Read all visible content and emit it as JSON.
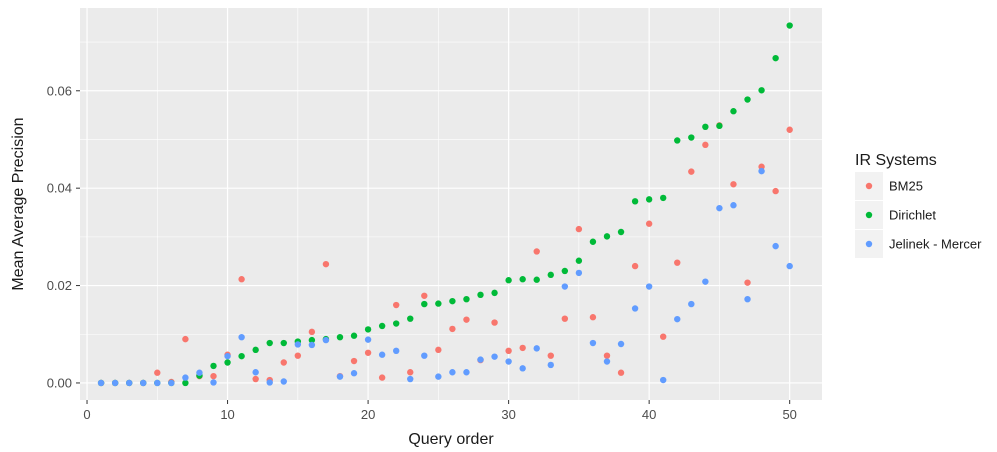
{
  "chart_data": {
    "type": "scatter",
    "title": "",
    "xlabel": "Query order",
    "ylabel": "Mean Average Precision",
    "xlim": [
      -0.5,
      52.3
    ],
    "ylim": [
      -0.0035,
      0.077
    ],
    "x_ticks": [
      0,
      10,
      20,
      30,
      40,
      50
    ],
    "x_tick_labels": [
      "0",
      "10",
      "20",
      "30",
      "40",
      "50"
    ],
    "y_ticks": [
      0.0,
      0.02,
      0.04,
      0.06
    ],
    "y_tick_labels": [
      "0.00",
      "0.02",
      "0.04",
      "0.06"
    ],
    "grid": true,
    "legend": {
      "title": "IR Systems",
      "position": "right",
      "entries": [
        "BM25",
        "Dirichlet",
        "Jelinek - Mercer"
      ]
    },
    "series": [
      {
        "name": "BM25",
        "color": "#F8766D",
        "x": [
          1,
          2,
          3,
          4,
          5,
          6,
          7,
          8,
          9,
          10,
          11,
          12,
          13,
          14,
          15,
          16,
          17,
          18,
          19,
          20,
          21,
          22,
          23,
          24,
          25,
          26,
          27,
          28,
          29,
          30,
          31,
          32,
          33,
          34,
          35,
          36,
          37,
          38,
          39,
          40,
          41,
          42,
          43,
          44,
          45,
          46,
          47,
          48,
          49,
          50
        ],
        "y": [
          0.0,
          0.0,
          0.0,
          0.0,
          0.0021,
          0.0002,
          0.009,
          0.0014,
          0.0014,
          0.0058,
          0.0213,
          0.0008,
          0.0006,
          0.0042,
          0.0056,
          0.0105,
          0.0244,
          0.0014,
          0.0045,
          0.0062,
          0.0011,
          0.016,
          0.0022,
          0.0179,
          0.0068,
          0.0111,
          0.013,
          0.0047,
          0.0124,
          0.0066,
          0.0072,
          0.027,
          0.0056,
          0.0132,
          0.0316,
          0.0135,
          0.0056,
          0.0021,
          0.024,
          0.0327,
          0.0095,
          0.0247,
          0.0434,
          0.0489,
          0.0529,
          0.0408,
          0.0206,
          0.0444,
          0.0394,
          0.052
        ]
      },
      {
        "name": "Dirichlet",
        "color": "#00BA38",
        "x": [
          1,
          2,
          3,
          4,
          5,
          6,
          7,
          8,
          9,
          10,
          11,
          12,
          13,
          14,
          15,
          16,
          17,
          18,
          19,
          20,
          21,
          22,
          23,
          24,
          25,
          26,
          27,
          28,
          29,
          30,
          31,
          32,
          33,
          34,
          35,
          36,
          37,
          38,
          39,
          40,
          41,
          42,
          43,
          44,
          45,
          46,
          47,
          48,
          49,
          50
        ],
        "y": [
          0.0,
          0.0,
          0.0,
          0.0,
          0.0,
          0.0,
          0.0,
          0.0015,
          0.0035,
          0.0042,
          0.0055,
          0.0068,
          0.0082,
          0.0082,
          0.0085,
          0.0088,
          0.009,
          0.0094,
          0.0097,
          0.011,
          0.0117,
          0.0122,
          0.0132,
          0.0162,
          0.0163,
          0.0168,
          0.0172,
          0.0181,
          0.0185,
          0.0211,
          0.0213,
          0.0212,
          0.0222,
          0.023,
          0.0251,
          0.029,
          0.0301,
          0.031,
          0.0373,
          0.0377,
          0.038,
          0.0498,
          0.0504,
          0.0526,
          0.0528,
          0.0558,
          0.0582,
          0.0601,
          0.0667,
          0.0734
        ]
      },
      {
        "name": "Jelinek - Mercer",
        "color": "#619CFF",
        "x": [
          1,
          2,
          3,
          4,
          5,
          6,
          7,
          8,
          9,
          10,
          11,
          12,
          13,
          14,
          15,
          16,
          17,
          18,
          19,
          20,
          21,
          22,
          23,
          24,
          25,
          26,
          27,
          28,
          29,
          30,
          31,
          32,
          33,
          34,
          35,
          36,
          37,
          38,
          39,
          40,
          41,
          42,
          43,
          44,
          45,
          46,
          47,
          48,
          49,
          50
        ],
        "y": [
          0.0,
          0.0,
          0.0,
          0.0,
          0.0,
          0.0,
          0.0011,
          0.0021,
          0.0001,
          0.0055,
          0.0094,
          0.0022,
          0.0001,
          0.0003,
          0.0079,
          0.0078,
          0.0088,
          0.0013,
          0.002,
          0.0089,
          0.0058,
          0.0066,
          0.0008,
          0.0056,
          0.0013,
          0.0022,
          0.0022,
          0.0048,
          0.0054,
          0.0044,
          0.003,
          0.0071,
          0.0037,
          0.0198,
          0.0226,
          0.0082,
          0.0044,
          0.008,
          0.0153,
          0.0198,
          0.0006,
          0.0131,
          0.0162,
          0.0208,
          0.0359,
          0.0365,
          0.0172,
          0.0435,
          0.0281,
          0.024
        ]
      }
    ]
  }
}
